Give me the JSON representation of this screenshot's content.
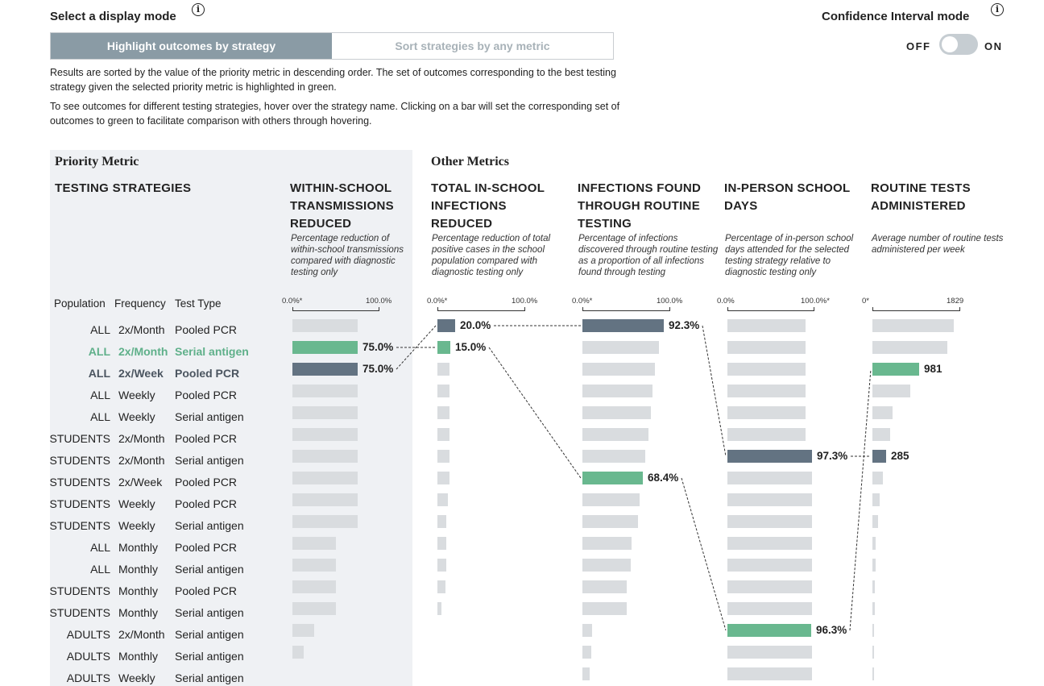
{
  "display_mode": {
    "title": "Select a display mode",
    "info": "i",
    "options": [
      "Highlight outcomes by strategy",
      "Sort strategies by any metric"
    ],
    "selected": 0
  },
  "ci_mode": {
    "title": "Confidence Interval mode",
    "info": "i",
    "off": "OFF",
    "on": "ON",
    "enabled": false
  },
  "description": [
    "Results are sorted by the value of the priority metric in descending order. The set of outcomes corresponding to the best testing strategy given the selected priority metric is highlighted in green.",
    "To see outcomes for different testing strategies, hover over the strategy name. Clicking on a bar will set the corresponding set of outcomes to green to facilitate comparison with others through hovering."
  ],
  "sections": {
    "priority": "Priority Metric",
    "other": "Other Metrics"
  },
  "strategies_header": "TESTING STRATEGIES",
  "row_headers": {
    "population": "Population",
    "frequency": "Frequency",
    "test_type": "Test Type"
  },
  "columns": [
    {
      "title": "WITHIN-SCHOOL TRANSMISSIONS REDUCED",
      "subtitle": "Percentage reduction of within-school transmissions compared with diagnostic testing only",
      "axis_min": "0.0%*",
      "axis_max": "100.0%"
    },
    {
      "title": "TOTAL IN-SCHOOL INFECTIONS REDUCED",
      "subtitle": "Percentage reduction of total positive cases in the school population compared with diagnostic testing only",
      "axis_min": "0.0%*",
      "axis_max": "100.0%"
    },
    {
      "title": "INFECTIONS FOUND THROUGH ROUTINE TESTING",
      "subtitle": "Percentage of infections discovered through routine testing as a proportion of all infections found through testing",
      "axis_min": "0.0%*",
      "axis_max": "100.0%"
    },
    {
      "title": "IN-PERSON SCHOOL DAYS",
      "subtitle": "Percentage of in-person school days attended for the selected testing strategy relative to diagnostic testing only",
      "axis_min": "0.0%",
      "axis_max": "100.0%*"
    },
    {
      "title": "ROUTINE TESTS ADMINISTERED",
      "subtitle": "Average number of routine tests administered per week",
      "axis_min": "0*",
      "axis_max": "1829"
    }
  ],
  "rows": [
    {
      "population": "ALL",
      "frequency": "2x/Month",
      "test_type": "Pooled PCR",
      "state": "",
      "values": [
        0.75,
        0.2,
        0.923,
        0.9,
        0.93
      ],
      "labels": [
        "",
        "20.0%",
        "92.3%",
        "",
        ""
      ]
    },
    {
      "population": "ALL",
      "frequency": "2x/Month",
      "test_type": "Serial antigen",
      "state": "green",
      "values": [
        0.75,
        0.15,
        0.87,
        0.9,
        0.85
      ],
      "labels": [
        "75.0%",
        "15.0%",
        "",
        "",
        ""
      ]
    },
    {
      "population": "ALL",
      "frequency": "2x/Week",
      "test_type": "Pooled PCR",
      "state": "dark",
      "values": [
        0.75,
        0.14,
        0.83,
        0.9,
        0.536
      ],
      "labels": [
        "75.0%",
        "",
        "",
        "",
        "981"
      ]
    },
    {
      "population": "ALL",
      "frequency": "Weekly",
      "test_type": "Pooled PCR",
      "state": "",
      "values": [
        0.75,
        0.14,
        0.8,
        0.9,
        0.43
      ],
      "labels": [
        "",
        "",
        "",
        "",
        ""
      ]
    },
    {
      "population": "ALL",
      "frequency": "Weekly",
      "test_type": "Serial antigen",
      "state": "",
      "values": [
        0.75,
        0.14,
        0.78,
        0.9,
        0.23
      ],
      "labels": [
        "",
        "",
        "",
        "",
        ""
      ]
    },
    {
      "population": "STUDENTS",
      "frequency": "2x/Month",
      "test_type": "Pooled PCR",
      "state": "",
      "values": [
        0.75,
        0.14,
        0.75,
        0.9,
        0.2
      ],
      "labels": [
        "",
        "",
        "",
        "",
        ""
      ]
    },
    {
      "population": "STUDENTS",
      "frequency": "2x/Month",
      "test_type": "Serial antigen",
      "state": "",
      "values": [
        0.75,
        0.14,
        0.72,
        0.973,
        0.156
      ],
      "labels": [
        "",
        "",
        "",
        "97.3%",
        "285"
      ]
    },
    {
      "population": "STUDENTS",
      "frequency": "2x/Week",
      "test_type": "Pooled PCR",
      "state": "",
      "values": [
        0.75,
        0.14,
        0.684,
        0.97,
        0.12
      ],
      "labels": [
        "",
        "",
        "68.4%",
        "",
        ""
      ]
    },
    {
      "population": "STUDENTS",
      "frequency": "Weekly",
      "test_type": "Pooled PCR",
      "state": "",
      "values": [
        0.75,
        0.12,
        0.65,
        0.97,
        0.08
      ],
      "labels": [
        "",
        "",
        "",
        "",
        ""
      ]
    },
    {
      "population": "STUDENTS",
      "frequency": "Weekly",
      "test_type": "Serial antigen",
      "state": "",
      "values": [
        0.75,
        0.1,
        0.63,
        0.97,
        0.06
      ],
      "labels": [
        "",
        "",
        "",
        "",
        ""
      ]
    },
    {
      "population": "ALL",
      "frequency": "Monthly",
      "test_type": "Pooled PCR",
      "state": "",
      "values": [
        0.5,
        0.1,
        0.56,
        0.97,
        0.04
      ],
      "labels": [
        "",
        "",
        "",
        "",
        ""
      ]
    },
    {
      "population": "ALL",
      "frequency": "Monthly",
      "test_type": "Serial antigen",
      "state": "",
      "values": [
        0.5,
        0.1,
        0.55,
        0.97,
        0.035
      ],
      "labels": [
        "",
        "",
        "",
        "",
        ""
      ]
    },
    {
      "population": "STUDENTS",
      "frequency": "Monthly",
      "test_type": "Pooled PCR",
      "state": "",
      "values": [
        0.5,
        0.09,
        0.5,
        0.97,
        0.03
      ],
      "labels": [
        "",
        "",
        "",
        "",
        ""
      ]
    },
    {
      "population": "STUDENTS",
      "frequency": "Monthly",
      "test_type": "Serial antigen",
      "state": "",
      "values": [
        0.5,
        0.05,
        0.5,
        0.97,
        0.025
      ],
      "labels": [
        "",
        "",
        "",
        "",
        ""
      ]
    },
    {
      "population": "ADULTS",
      "frequency": "2x/Month",
      "test_type": "Serial antigen",
      "state": "",
      "values": [
        0.25,
        0.0,
        0.11,
        0.963,
        0.02
      ],
      "labels": [
        "",
        "",
        "",
        "96.3%",
        ""
      ]
    },
    {
      "population": "ADULTS",
      "frequency": "Monthly",
      "test_type": "Serial antigen",
      "state": "",
      "values": [
        0.125,
        0.0,
        0.1,
        0.97,
        0.015
      ],
      "labels": [
        "",
        "",
        "",
        "",
        ""
      ]
    },
    {
      "population": "ADULTS",
      "frequency": "Weekly",
      "test_type": "Serial antigen",
      "state": "",
      "values": [
        0.0,
        0.0,
        0.08,
        0.97,
        0.01
      ],
      "labels": [
        "",
        "",
        "",
        "",
        ""
      ]
    }
  ],
  "highlight_colors": {
    "green": "#69b88f",
    "dark": "#637382",
    "gray": "#d9dcdf"
  },
  "connector_paths": {
    "green": [
      [
        0,
        1
      ],
      [
        1,
        1
      ],
      [
        2,
        7
      ],
      [
        3,
        14
      ],
      [
        4,
        2
      ]
    ],
    "dark": [
      [
        0,
        2
      ],
      [
        1,
        0
      ],
      [
        2,
        0
      ],
      [
        3,
        6
      ],
      [
        4,
        6
      ]
    ]
  }
}
